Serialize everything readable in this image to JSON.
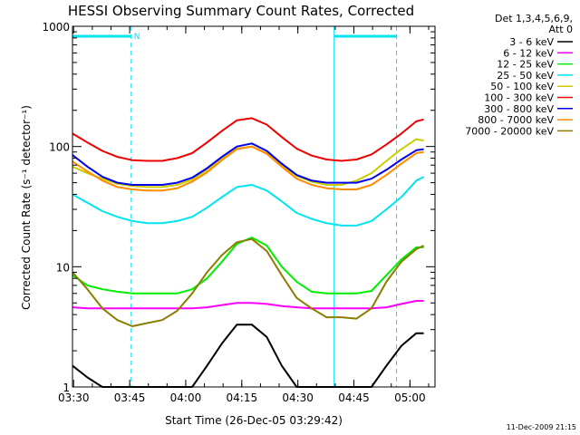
{
  "chart_data": {
    "type": "line",
    "title": "HESSI Observing Summary Count Rates, Corrected",
    "xlabel": "Start Time (26-Dec-05 03:29:42)",
    "ylabel": "Corrected Count Rate (s⁻¹ detector⁻¹)",
    "x_unit": "minutes since 03:29:42",
    "xlim": [
      0,
      97
    ],
    "ylim": [
      1,
      1000
    ],
    "y_scale": "log",
    "x_tick_labels": [
      "03:30",
      "03:45",
      "04:00",
      "04:15",
      "04:30",
      "04:45",
      "05:00"
    ],
    "x_tick_values": [
      0.3,
      15.3,
      30.3,
      45.3,
      60.3,
      75.3,
      90.3
    ],
    "y_tick_labels": [
      "1",
      "10",
      "100",
      "1000"
    ],
    "y_tick_values": [
      1,
      10,
      100,
      1000
    ],
    "grid": false,
    "legend_position": "top-right",
    "legend_title_lines": [
      "Det 1,3,4,5,6,9,",
      "Att 0"
    ],
    "orbit_markers": {
      "color": "#00e5ee",
      "solid_vertical_x": [
        0,
        70
      ],
      "dashed_vertical_x": [
        15.7,
        86.7
      ],
      "flag_bars": [
        {
          "x_start": 0,
          "x_end": 15.7
        },
        {
          "x_start": 70,
          "x_end": 86.7
        }
      ],
      "flag_label": "N"
    },
    "series": [
      {
        "name": "3 - 6 keV",
        "color": "#000000",
        "x": [
          0,
          4,
          8,
          12,
          16,
          20,
          24,
          28,
          32,
          36,
          40,
          44,
          48,
          52,
          56,
          60,
          64,
          68,
          72,
          76,
          80,
          84,
          88,
          92,
          94
        ],
        "values": [
          1.5,
          1.2,
          1,
          1,
          1,
          1,
          1,
          1,
          1,
          1.5,
          2.3,
          3.3,
          3.3,
          2.6,
          1.5,
          1,
          1,
          1,
          1,
          1,
          1,
          1.5,
          2.2,
          2.8,
          2.8
        ]
      },
      {
        "name": "6 - 12 keV",
        "color": "#ff00ff",
        "x": [
          0,
          4,
          8,
          12,
          16,
          20,
          24,
          28,
          32,
          36,
          40,
          44,
          48,
          52,
          56,
          60,
          64,
          68,
          72,
          76,
          80,
          84,
          88,
          92,
          94
        ],
        "values": [
          4.6,
          4.5,
          4.5,
          4.5,
          4.5,
          4.5,
          4.5,
          4.5,
          4.5,
          4.6,
          4.8,
          5,
          5,
          4.9,
          4.7,
          4.6,
          4.5,
          4.5,
          4.5,
          4.5,
          4.5,
          4.6,
          4.9,
          5.2,
          5.2
        ]
      },
      {
        "name": "12 - 25 keV",
        "color": "#00ee00",
        "x": [
          0,
          4,
          8,
          12,
          16,
          20,
          24,
          28,
          32,
          36,
          40,
          44,
          48,
          52,
          56,
          60,
          64,
          68,
          72,
          76,
          80,
          84,
          88,
          92,
          94
        ],
        "values": [
          8.5,
          7,
          6.5,
          6.2,
          6,
          6,
          6,
          6,
          6.5,
          8,
          11,
          15.5,
          17.5,
          15,
          10,
          7.5,
          6.2,
          6,
          6,
          6,
          6.3,
          8.5,
          11.5,
          14.5,
          14.5
        ]
      },
      {
        "name": "25 - 50 keV",
        "color": "#00e5ee",
        "x": [
          0,
          4,
          8,
          12,
          16,
          20,
          24,
          28,
          32,
          36,
          40,
          44,
          48,
          52,
          56,
          60,
          64,
          68,
          72,
          76,
          80,
          84,
          88,
          92,
          94
        ],
        "values": [
          40,
          34,
          29,
          26,
          24,
          23,
          23,
          24,
          26,
          31,
          38,
          46,
          48,
          43,
          35,
          28,
          25,
          23,
          22,
          22,
          24,
          30,
          38,
          52,
          56
        ]
      },
      {
        "name": "50 - 100 keV",
        "color": "#cccc00",
        "x": [
          0,
          4,
          8,
          12,
          16,
          20,
          24,
          28,
          32,
          36,
          40,
          44,
          48,
          52,
          56,
          60,
          64,
          68,
          72,
          76,
          80,
          84,
          88,
          92,
          94
        ],
        "values": [
          68,
          60,
          54,
          49,
          47,
          46,
          46,
          48,
          53,
          64,
          80,
          96,
          100,
          88,
          70,
          57,
          51,
          48,
          48,
          52,
          60,
          76,
          95,
          115,
          112
        ]
      },
      {
        "name": "100 - 300 keV",
        "color": "#ee0000",
        "x": [
          0,
          4,
          8,
          12,
          16,
          20,
          24,
          28,
          32,
          36,
          40,
          44,
          48,
          52,
          56,
          60,
          64,
          68,
          72,
          76,
          80,
          84,
          88,
          92,
          94
        ],
        "values": [
          128,
          108,
          92,
          82,
          77,
          76,
          76,
          80,
          88,
          108,
          135,
          165,
          172,
          152,
          120,
          96,
          84,
          78,
          76,
          78,
          86,
          104,
          128,
          162,
          168
        ]
      },
      {
        "name": "300 - 800 keV",
        "color": "#0000ee",
        "x": [
          0,
          4,
          8,
          12,
          16,
          20,
          24,
          28,
          32,
          36,
          40,
          44,
          48,
          52,
          56,
          60,
          64,
          68,
          72,
          76,
          80,
          84,
          88,
          92,
          94
        ],
        "values": [
          85,
          68,
          56,
          50,
          48,
          48,
          48,
          50,
          55,
          66,
          82,
          100,
          106,
          92,
          72,
          58,
          52,
          50,
          50,
          50,
          54,
          64,
          78,
          93,
          95
        ]
      },
      {
        "name": "800 - 7000 keV",
        "color": "#ff8c00",
        "x": [
          0,
          4,
          8,
          12,
          16,
          20,
          24,
          28,
          32,
          36,
          40,
          44,
          48,
          52,
          56,
          60,
          64,
          68,
          72,
          76,
          80,
          84,
          88,
          92,
          94
        ],
        "values": [
          75,
          62,
          52,
          46,
          44,
          43,
          43,
          45,
          51,
          61,
          77,
          95,
          100,
          87,
          68,
          54,
          48,
          45,
          44,
          44,
          48,
          58,
          72,
          88,
          90
        ]
      },
      {
        "name": "7000 - 20000 keV",
        "color": "#8b7d00",
        "x": [
          0,
          4,
          8,
          12,
          16,
          20,
          24,
          28,
          32,
          36,
          40,
          44,
          48,
          52,
          56,
          60,
          64,
          68,
          72,
          76,
          80,
          84,
          88,
          92,
          94
        ],
        "values": [
          9,
          6.5,
          4.5,
          3.6,
          3.2,
          3.4,
          3.6,
          4.3,
          6,
          9,
          12.5,
          16,
          17,
          13.5,
          8.5,
          5.5,
          4.5,
          3.8,
          3.8,
          3.7,
          4.5,
          7.5,
          11,
          14,
          15
        ]
      }
    ]
  },
  "footer_timestamp": "11-Dec-2009 21:15"
}
